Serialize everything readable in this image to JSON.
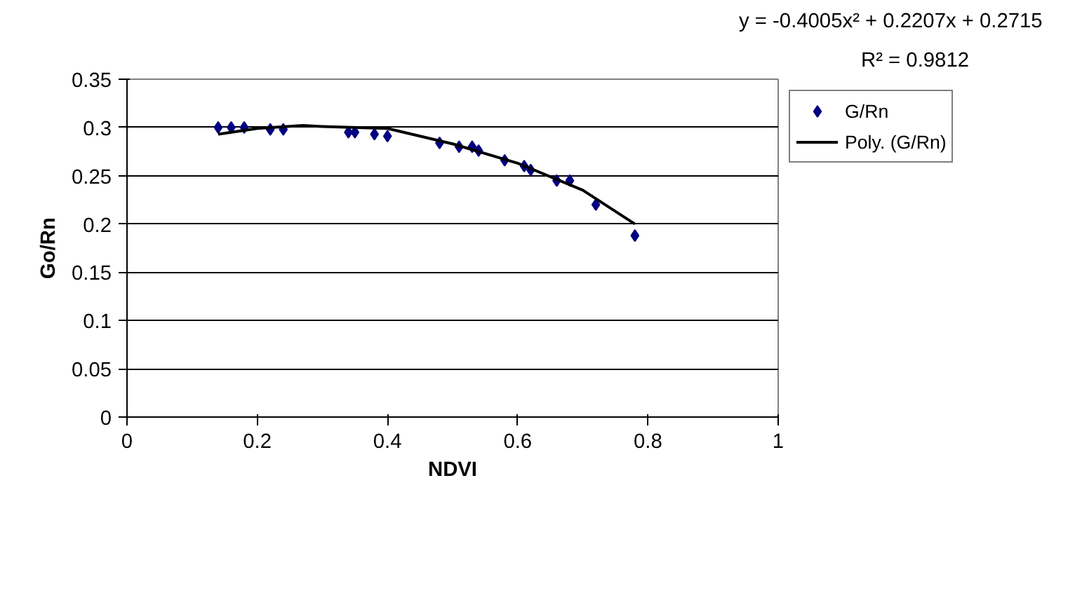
{
  "chart_data": {
    "type": "scatter",
    "xlabel": "NDVI",
    "ylabel": "Go/Rn",
    "annotations": [
      "y = -0.4005x² + 0.2207x + 0.2715",
      "R² = 0.9812"
    ],
    "xlim": [
      0,
      1
    ],
    "xticks": [
      0,
      0.2,
      0.4,
      0.6,
      0.8,
      1
    ],
    "ylim": [
      0,
      0.35
    ],
    "yticks": [
      0,
      0.05,
      0.1,
      0.15,
      0.2,
      0.25,
      0.3,
      0.35
    ],
    "grid": "y",
    "legend": "right",
    "series": [
      {
        "name": "G/Rn",
        "color": "#000080",
        "marker": "diamond",
        "x": [
          0.14,
          0.16,
          0.18,
          0.22,
          0.24,
          0.34,
          0.35,
          0.38,
          0.4,
          0.48,
          0.51,
          0.53,
          0.54,
          0.58,
          0.61,
          0.62,
          0.66,
          0.68,
          0.72,
          0.78
        ],
        "values": [
          0.3,
          0.3,
          0.3,
          0.298,
          0.298,
          0.295,
          0.295,
          0.293,
          0.291,
          0.284,
          0.28,
          0.28,
          0.276,
          0.266,
          0.26,
          0.256,
          0.245,
          0.245,
          0.22,
          0.188
        ]
      },
      {
        "name": "Poly. (G/Rn)",
        "type": "line",
        "color": "#000000",
        "line_style": "solid",
        "marker": "none",
        "x": [
          0.14,
          0.2,
          0.27,
          0.3,
          0.4,
          0.5,
          0.6,
          0.7,
          0.78
        ],
        "values": [
          0.293,
          0.299,
          0.302,
          0.301,
          0.299,
          0.283,
          0.263,
          0.235,
          0.2
        ]
      }
    ]
  }
}
